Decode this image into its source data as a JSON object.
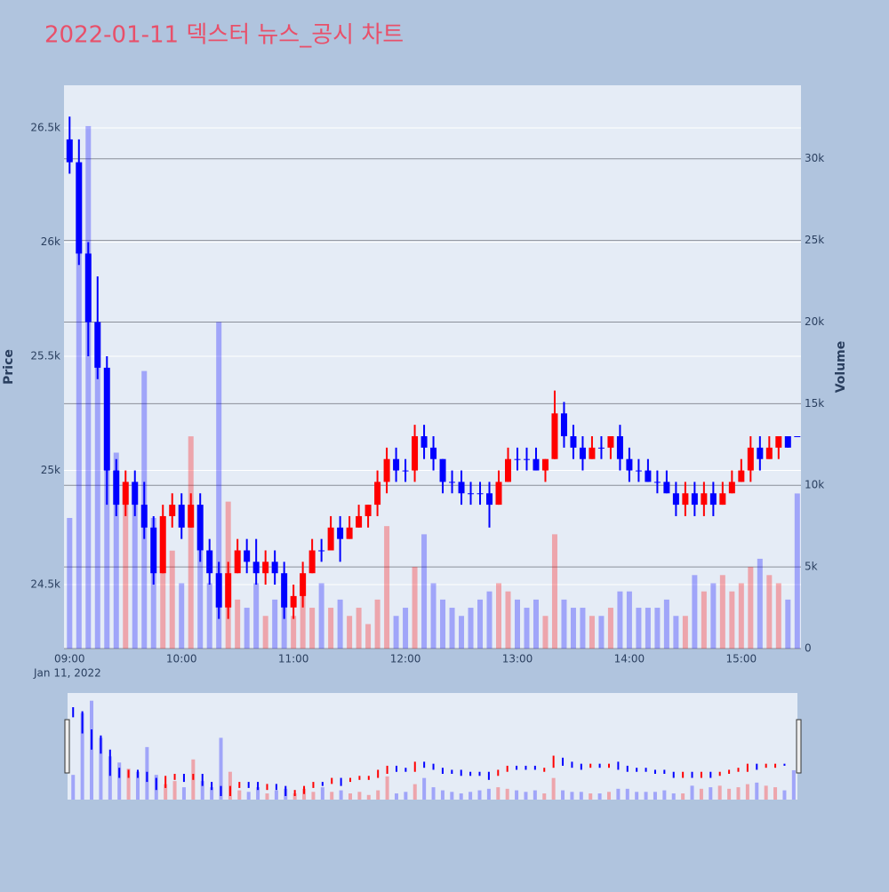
{
  "chart_data": {
    "type": "candlestick",
    "title": "2022-01-11 덱스터 뉴스_공시 차트",
    "yaxis_title": "Price",
    "y2axis_title": "Volume",
    "x_date_label": "Jan 11, 2022",
    "increasing_color": "#ff0000",
    "decreasing_color": "#0000ff",
    "title_color": "#e8506a",
    "x": [
      "2022-01-11 09:00",
      "2022-01-11 09:05",
      "2022-01-11 09:10",
      "2022-01-11 09:15",
      "2022-01-11 09:20",
      "2022-01-11 09:25",
      "2022-01-11 09:30",
      "2022-01-11 09:35",
      "2022-01-11 09:40",
      "2022-01-11 09:45",
      "2022-01-11 09:50",
      "2022-01-11 09:55",
      "2022-01-11 10:00",
      "2022-01-11 10:05",
      "2022-01-11 10:10",
      "2022-01-11 10:15",
      "2022-01-11 10:20",
      "2022-01-11 10:25",
      "2022-01-11 10:30",
      "2022-01-11 10:35",
      "2022-01-11 10:40",
      "2022-01-11 10:45",
      "2022-01-11 10:50",
      "2022-01-11 10:55",
      "2022-01-11 11:00",
      "2022-01-11 11:05",
      "2022-01-11 11:10",
      "2022-01-11 11:15",
      "2022-01-11 11:20",
      "2022-01-11 11:25",
      "2022-01-11 11:30",
      "2022-01-11 11:35",
      "2022-01-11 11:40",
      "2022-01-11 11:45",
      "2022-01-11 11:50",
      "2022-01-11 11:55",
      "2022-01-11 12:00",
      "2022-01-11 12:05",
      "2022-01-11 12:10",
      "2022-01-11 12:15",
      "2022-01-11 12:20",
      "2022-01-11 12:25",
      "2022-01-11 12:30",
      "2022-01-11 12:35",
      "2022-01-11 12:40",
      "2022-01-11 12:45",
      "2022-01-11 12:50",
      "2022-01-11 12:55",
      "2022-01-11 13:00",
      "2022-01-11 13:05",
      "2022-01-11 13:10",
      "2022-01-11 13:15",
      "2022-01-11 13:20",
      "2022-01-11 13:25",
      "2022-01-11 13:30",
      "2022-01-11 13:35",
      "2022-01-11 13:40",
      "2022-01-11 13:45",
      "2022-01-11 13:50",
      "2022-01-11 13:55",
      "2022-01-11 14:00",
      "2022-01-11 14:05",
      "2022-01-11 14:10",
      "2022-01-11 14:15",
      "2022-01-11 14:20",
      "2022-01-11 14:25",
      "2022-01-11 14:30",
      "2022-01-11 14:35",
      "2022-01-11 14:40",
      "2022-01-11 14:45",
      "2022-01-11 14:50",
      "2022-01-11 14:55",
      "2022-01-11 15:00",
      "2022-01-11 15:05",
      "2022-01-11 15:10",
      "2022-01-11 15:15",
      "2022-01-11 15:20",
      "2022-01-11 15:25",
      "2022-01-11 15:30"
    ],
    "open": [
      26450,
      26350,
      25950,
      25650,
      25450,
      25000,
      24850,
      24950,
      24850,
      24750,
      24550,
      24800,
      24850,
      24750,
      24850,
      24650,
      24550,
      24400,
      24550,
      24650,
      24600,
      24550,
      24600,
      24550,
      24400,
      24450,
      24550,
      24650,
      24650,
      24750,
      24700,
      24750,
      24800,
      24850,
      24950,
      25050,
      25000,
      25000,
      25150,
      25100,
      25050,
      24950,
      24950,
      24900,
      24900,
      24900,
      24850,
      24950,
      25050,
      25050,
      25050,
      25000,
      25050,
      25250,
      25150,
      25100,
      25050,
      25100,
      25100,
      25150,
      25050,
      25000,
      25000,
      24950,
      24950,
      24900,
      24850,
      24900,
      24850,
      24900,
      24850,
      24900,
      24950,
      25000,
      25100,
      25050,
      25100,
      25150,
      25150
    ],
    "high": [
      26550,
      26450,
      26000,
      25850,
      25500,
      25050,
      25000,
      25000,
      24950,
      24800,
      24850,
      24900,
      24900,
      24900,
      24900,
      24700,
      24600,
      24600,
      24700,
      24700,
      24700,
      24650,
      24650,
      24600,
      24500,
      24600,
      24700,
      24700,
      24800,
      24800,
      24800,
      24850,
      24850,
      25000,
      25100,
      25100,
      25050,
      25200,
      25200,
      25150,
      25050,
      25000,
      25000,
      24950,
      24950,
      24950,
      25000,
      25100,
      25100,
      25100,
      25100,
      25050,
      25350,
      25300,
      25200,
      25150,
      25150,
      25150,
      25150,
      25200,
      25100,
      25050,
      25050,
      25000,
      25000,
      24950,
      24950,
      24950,
      24950,
      24950,
      24950,
      25000,
      25050,
      25150,
      25150,
      25150,
      25150,
      25150,
      25150
    ],
    "low": [
      26300,
      25900,
      25500,
      25400,
      24850,
      24800,
      24800,
      24800,
      24700,
      24500,
      24550,
      24750,
      24700,
      24750,
      24600,
      24500,
      24350,
      24350,
      24550,
      24550,
      24500,
      24500,
      24500,
      24350,
      24350,
      24400,
      24550,
      24600,
      24650,
      24600,
      24700,
      24750,
      24750,
      24800,
      24900,
      24950,
      24950,
      24950,
      25050,
      25000,
      24900,
      24900,
      24850,
      24850,
      24850,
      24750,
      24850,
      24950,
      25000,
      25000,
      25000,
      24950,
      25050,
      25100,
      25050,
      25000,
      25050,
      25050,
      25050,
      25000,
      24950,
      24950,
      24950,
      24900,
      24900,
      24800,
      24800,
      24800,
      24800,
      24800,
      24850,
      24900,
      24950,
      24950,
      25000,
      25050,
      25050,
      25100,
      25150
    ],
    "close": [
      26350,
      25950,
      25650,
      25450,
      25000,
      24850,
      24950,
      24850,
      24750,
      24550,
      24800,
      24850,
      24750,
      24850,
      24650,
      24550,
      24400,
      24550,
      24650,
      24600,
      24550,
      24600,
      24550,
      24400,
      24450,
      24550,
      24650,
      24650,
      24750,
      24700,
      24750,
      24800,
      24850,
      24950,
      25050,
      25000,
      25000,
      25150,
      25100,
      25050,
      24950,
      24950,
      24900,
      24900,
      24900,
      24850,
      24950,
      25050,
      25050,
      25050,
      25000,
      25050,
      25250,
      25150,
      25100,
      25050,
      25100,
      25100,
      25150,
      25050,
      25000,
      25000,
      24950,
      24950,
      24900,
      24850,
      24900,
      24850,
      24900,
      24850,
      24900,
      24950,
      25000,
      25100,
      25050,
      25100,
      25150,
      25100,
      25150
    ],
    "volume": [
      8000,
      28000,
      32000,
      20000,
      14000,
      12000,
      10000,
      9000,
      17000,
      8000,
      5000,
      6000,
      4000,
      13000,
      6000,
      4000,
      20000,
      9000,
      3000,
      2500,
      4000,
      2000,
      3000,
      3500,
      2000,
      3500,
      2500,
      4000,
      2500,
      3000,
      2000,
      2500,
      1500,
      3000,
      7500,
      2000,
      2500,
      5000,
      7000,
      4000,
      3000,
      2500,
      2000,
      2500,
      3000,
      3500,
      4000,
      3500,
      3000,
      2500,
      3000,
      2000,
      7000,
      3000,
      2500,
      2500,
      2000,
      2000,
      2500,
      3500,
      3500,
      2500,
      2500,
      2500,
      3000,
      2000,
      2000,
      4500,
      3500,
      4000,
      4500,
      3500,
      4000,
      5000,
      5500,
      4500,
      4000,
      3000,
      9500
    ],
    "xlim": [
      "2022-01-11 08:57",
      "2022-01-11 15:32"
    ],
    "xticks": [
      {
        "value": "2022-01-11 09:00",
        "label": "09:00"
      },
      {
        "value": "2022-01-11 10:00",
        "label": "10:00"
      },
      {
        "value": "2022-01-11 11:00",
        "label": "11:00"
      },
      {
        "value": "2022-01-11 12:00",
        "label": "12:00"
      },
      {
        "value": "2022-01-11 13:00",
        "label": "13:00"
      },
      {
        "value": "2022-01-11 14:00",
        "label": "14:00"
      },
      {
        "value": "2022-01-11 15:00",
        "label": "15:00"
      }
    ],
    "ylim": [
      24220,
      26687
    ],
    "yticks": [
      {
        "value": 24500,
        "label": "24.5k"
      },
      {
        "value": 25000,
        "label": "25k"
      },
      {
        "value": 25500,
        "label": "25.5k"
      },
      {
        "value": 26000,
        "label": "26k"
      },
      {
        "value": 26500,
        "label": "26.5k"
      }
    ],
    "y2lim": [
      0,
      34500
    ],
    "y2ticks": [
      0,
      {
        "value": 5000,
        "label": "5k"
      },
      {
        "value": 10000,
        "label": "10k"
      },
      {
        "value": 15000,
        "label": "15k"
      },
      {
        "value": 20000,
        "label": "20k"
      },
      {
        "value": 25000,
        "label": "25k"
      },
      {
        "value": 30000,
        "label": "30k"
      }
    ],
    "grid": true,
    "rangeslider": true
  }
}
